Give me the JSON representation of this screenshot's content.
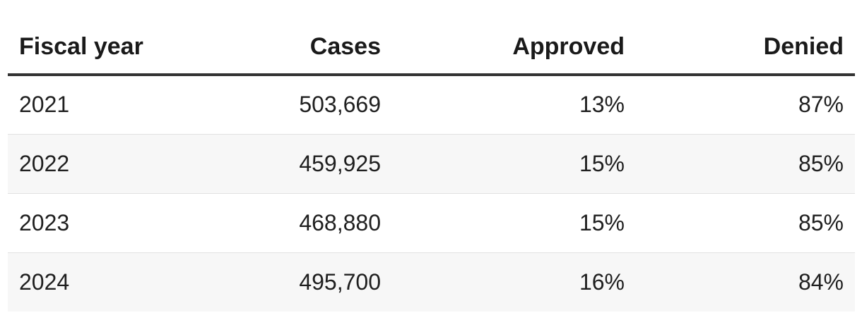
{
  "table": {
    "headers": [
      "Fiscal year",
      "Cases",
      "Approved",
      "Denied"
    ],
    "rows": [
      [
        "2021",
        "503,669",
        "13%",
        "87%"
      ],
      [
        "2022",
        "459,925",
        "15%",
        "85%"
      ],
      [
        "2023",
        "468,880",
        "15%",
        "85%"
      ],
      [
        "2024",
        "495,700",
        "16%",
        "84%"
      ]
    ]
  },
  "colors": {
    "header_rule": "#333333",
    "row_divider": "#e2e2e2",
    "alt_row_background": "#f7f7f7"
  }
}
